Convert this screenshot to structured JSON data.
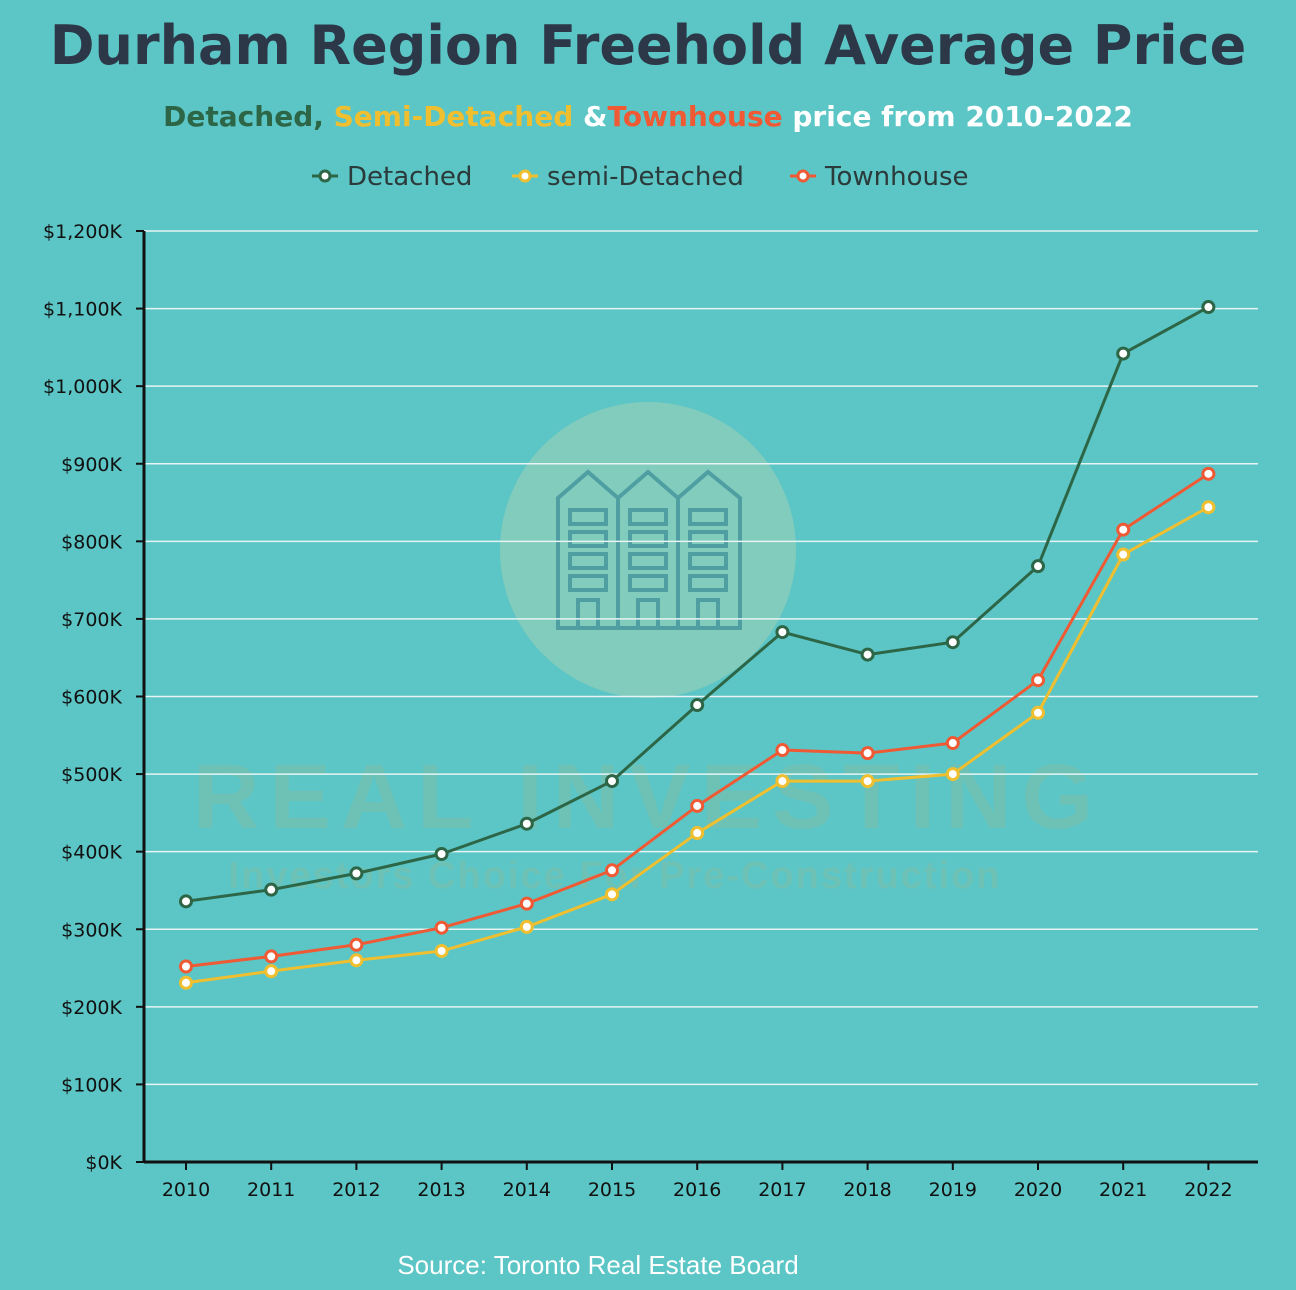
{
  "header": {
    "title": "Durham Region Freehold Average Price",
    "subtitle_detached": "Detached,",
    "subtitle_semi": "Semi-Detached",
    "subtitle_amp": "&",
    "subtitle_town": "Townhouse",
    "subtitle_rest": "price from 2010-2022"
  },
  "watermark": {
    "line1": "REAL INVESTING",
    "line2": "Investors Choice For Pre-Construction",
    "icon": "townhouses-icon"
  },
  "footer": {
    "source": "Source: Toronto Real Estate Board"
  },
  "colors": {
    "background": "#5cc5c5",
    "detached": "#2d6646",
    "semi": "#f0bf2f",
    "townhouse": "#ef5a34",
    "title": "#2c3848"
  },
  "chart_data": {
    "type": "line",
    "title": "Durham Region Freehold Average Price",
    "xlabel": "",
    "ylabel": "",
    "ylim": [
      0,
      1200
    ],
    "ytick_values": [
      0,
      100,
      200,
      300,
      400,
      500,
      600,
      700,
      800,
      900,
      1000,
      1100,
      1200
    ],
    "ytick_labels": [
      "$0K",
      "$100K",
      "$200K",
      "$300K",
      "$400K",
      "$500K",
      "$600K",
      "$700K",
      "$800K",
      "$900K",
      "$1,000K",
      "$1,100K",
      "$1,200K"
    ],
    "categories": [
      "2010",
      "2011",
      "2012",
      "2013",
      "2014",
      "2015",
      "2016",
      "2017",
      "2018",
      "2019",
      "2020",
      "2021",
      "2022"
    ],
    "grid": true,
    "legend_position": "top-center",
    "series": [
      {
        "name": "Detached",
        "color": "#2d6646",
        "values": [
          336,
          351,
          372,
          397,
          436,
          491,
          589,
          683,
          654,
          670,
          768,
          1042,
          1102
        ]
      },
      {
        "name": "semi-Detached",
        "color": "#f0bf2f",
        "values": [
          231,
          246,
          260,
          272,
          303,
          345,
          424,
          491,
          491,
          500,
          579,
          783,
          844
        ]
      },
      {
        "name": "Townhouse",
        "color": "#ef5a34",
        "values": [
          252,
          265,
          280,
          302,
          333,
          376,
          459,
          531,
          527,
          540,
          621,
          815,
          887
        ]
      }
    ]
  }
}
